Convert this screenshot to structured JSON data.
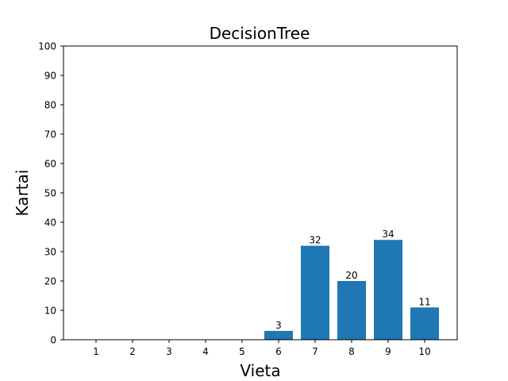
{
  "chart_data": {
    "type": "bar",
    "title": "DecisionTree",
    "xlabel": "Vieta",
    "ylabel": "Kartai",
    "categories": [
      "1",
      "2",
      "3",
      "4",
      "5",
      "6",
      "7",
      "8",
      "9",
      "10"
    ],
    "values": [
      0,
      0,
      0,
      0,
      0,
      3,
      32,
      20,
      34,
      11
    ],
    "data_labels": [
      "",
      "",
      "",
      "",
      "",
      "3",
      "32",
      "20",
      "34",
      "11"
    ],
    "ylim": [
      0,
      100
    ],
    "yticks": [
      0,
      10,
      20,
      30,
      40,
      50,
      60,
      70,
      80,
      90,
      100
    ],
    "grid": false,
    "bar_color": "#1f77b4"
  }
}
